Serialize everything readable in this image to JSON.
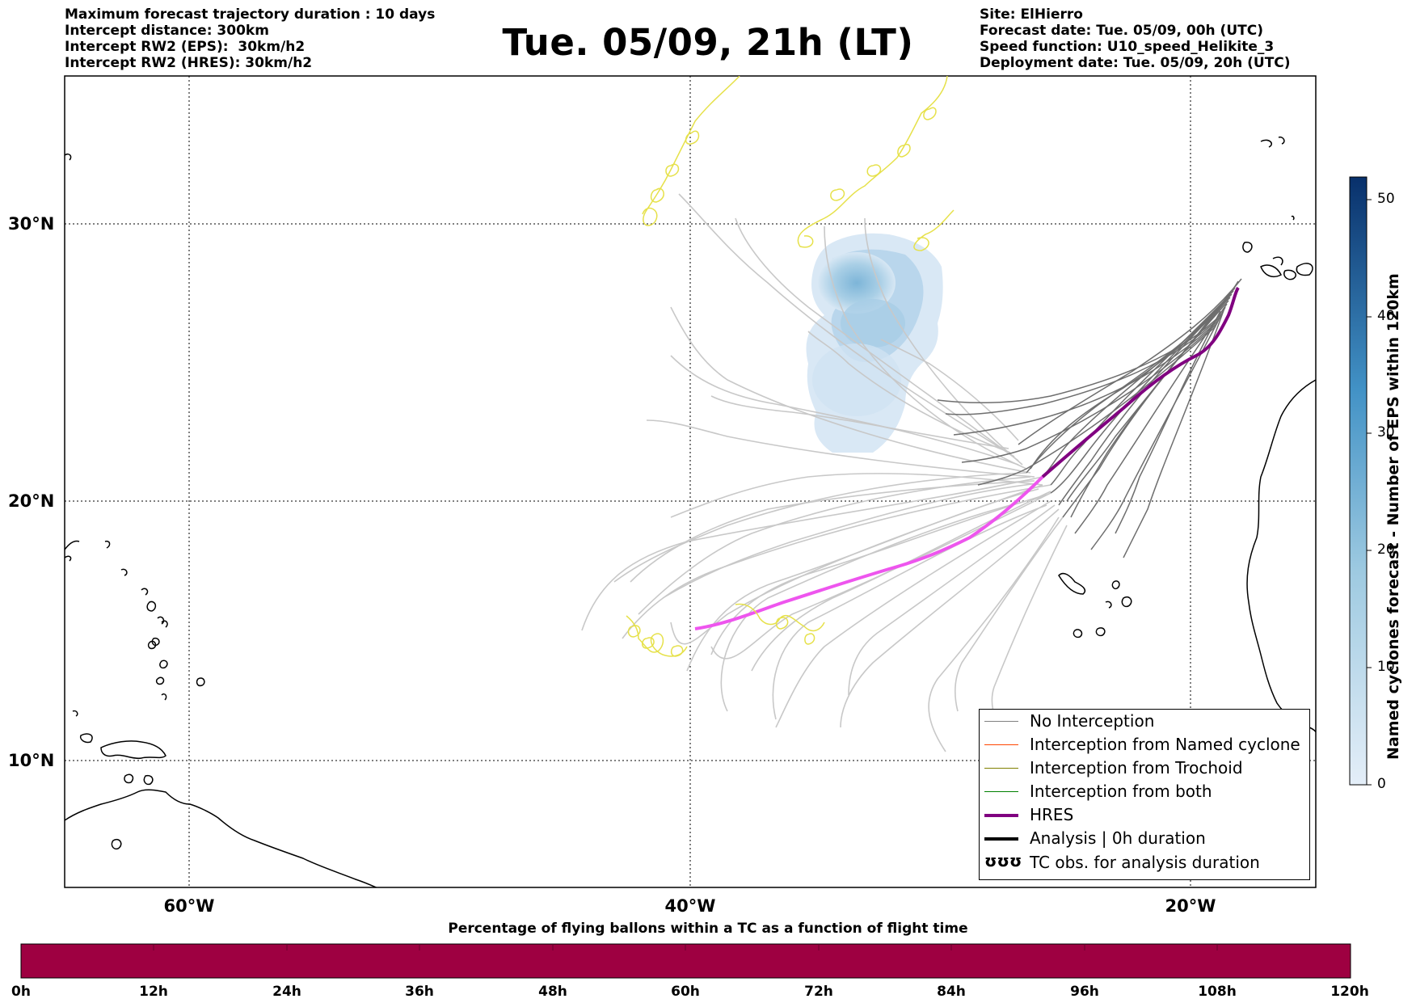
{
  "header": {
    "left_lines": [
      "Maximum forecast trajectory duration : 10 days",
      "Intercept distance: 300km",
      "Intercept RW2 (EPS):  30km/h2",
      "Intercept RW2 (HRES): 30km/h2"
    ],
    "title": "Tue. 05/09, 21h (LT)",
    "right_lines": [
      "Site: ElHierro",
      "Forecast date: Tue. 05/09, 00h (UTC)",
      "Speed function: U10_speed_Helikite_3",
      "Deployment date: Tue. 05/09, 20h (UTC)"
    ]
  },
  "map": {
    "lat_labels": [
      "30°N",
      "20°N",
      "10°N"
    ],
    "lon_labels": [
      "60°W",
      "40°W",
      "20°W"
    ],
    "colors": {
      "no_interception": "#808080",
      "named_cyclone": "#ff4500",
      "trochoid": "#808000",
      "both": "#008000",
      "hres": "#800080",
      "hres_early": "#ee55ee",
      "eps_far": "#c8c8c8",
      "tc_obs": "#e6e14a",
      "cyclone_density": "#9ec8e3"
    }
  },
  "legend": {
    "items": [
      {
        "label": "No Interception",
        "color": "#808080",
        "style": "thin"
      },
      {
        "label": "Interception from Named cyclone",
        "color": "#ff4500",
        "style": "thin"
      },
      {
        "label": "Interception from Trochoid",
        "color": "#808000",
        "style": "thin"
      },
      {
        "label": "Interception from both",
        "color": "#008000",
        "style": "thin"
      },
      {
        "label": "HRES",
        "color": "#800080",
        "style": "thick"
      },
      {
        "label": "Analysis | 0h duration",
        "color": "#000000",
        "style": "thick"
      },
      {
        "label": "TC obs. for analysis duration",
        "color": "#000000",
        "style": "loops",
        "symbol": "ʊʊʊ"
      }
    ]
  },
  "colorbar": {
    "title": "Named cyclones forecast - Number of EPS within 120km",
    "ticks": [
      "0",
      "10",
      "20",
      "30",
      "40",
      "50"
    ],
    "color_low": "#deebf7",
    "color_high": "#08306b"
  },
  "progress_bar": {
    "title": "Percentage of flying ballons within a TC as a function of flight time",
    "labels": [
      "0h",
      "12h",
      "24h",
      "36h",
      "48h",
      "60h",
      "72h",
      "84h",
      "96h",
      "108h",
      "120h"
    ],
    "color": "#9e0041"
  }
}
